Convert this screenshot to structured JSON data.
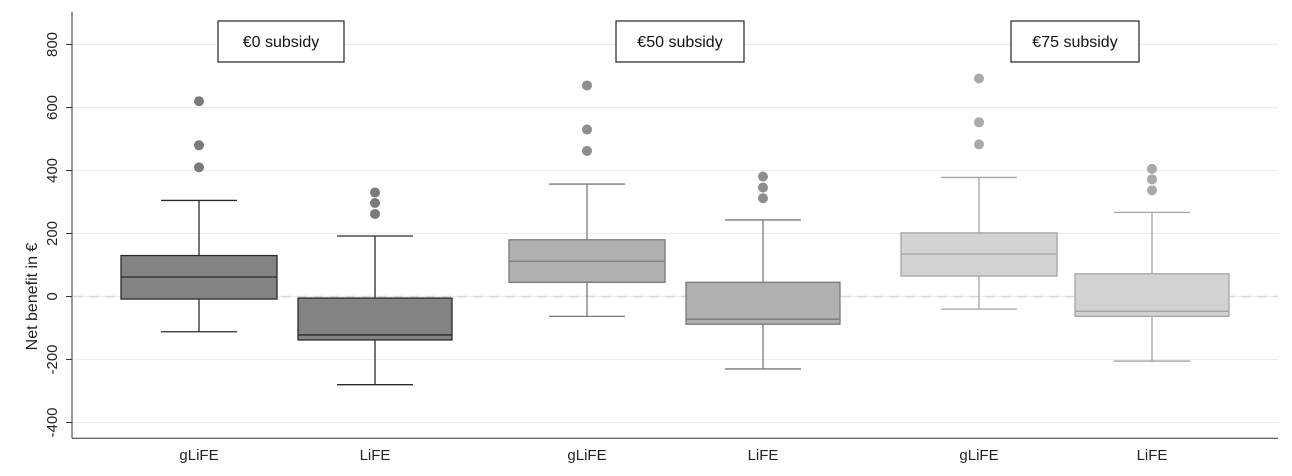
{
  "chart_data": {
    "type": "box",
    "title": "",
    "ylabel": "Net benefit in €",
    "xlabel": "",
    "ylim": [
      -450,
      850
    ],
    "yticks": [
      -400,
      -200,
      0,
      200,
      400,
      600,
      800
    ],
    "ytick_labels": [
      "-400",
      "-200",
      "0",
      "200",
      "400",
      "600",
      "800"
    ],
    "grid": true,
    "reference_line": 0,
    "panels": [
      {
        "label": "€0 subsidy",
        "color": "#838383",
        "edge_color": "#2a2a2a",
        "groups": [
          {
            "category": "gLiFE",
            "whisker_low": -112,
            "q1": -8,
            "median": 62,
            "q3": 130,
            "whisker_high": 305,
            "outliers": [
              410,
              480,
              620
            ]
          },
          {
            "category": "LiFE",
            "whisker_low": -280,
            "q1": -138,
            "median": -122,
            "q3": -5,
            "whisker_high": 192,
            "outliers": [
              262,
              297,
              330
            ]
          }
        ]
      },
      {
        "label": "€50 subsidy",
        "color": "#b0b0b0",
        "edge_color": "#7a7a7a",
        "groups": [
          {
            "category": "gLiFE",
            "whisker_low": -63,
            "q1": 45,
            "median": 112,
            "q3": 180,
            "whisker_high": 357,
            "outliers": [
              462,
              530,
              670
            ]
          },
          {
            "category": "LiFE",
            "whisker_low": -230,
            "q1": -88,
            "median": -72,
            "q3": 45,
            "whisker_high": 243,
            "outliers": [
              312,
              346,
              381
            ]
          }
        ]
      },
      {
        "label": "€75 subsidy",
        "color": "#d2d2d2",
        "edge_color": "#a4a4a4",
        "groups": [
          {
            "category": "gLiFE",
            "whisker_low": -40,
            "q1": 65,
            "median": 135,
            "q3": 202,
            "whisker_high": 378,
            "outliers": [
              483,
              553,
              692
            ]
          },
          {
            "category": "LiFE",
            "whisker_low": -205,
            "q1": -63,
            "median": -47,
            "q3": 72,
            "whisker_high": 267,
            "outliers": [
              337,
              372,
              405
            ]
          }
        ]
      }
    ]
  }
}
